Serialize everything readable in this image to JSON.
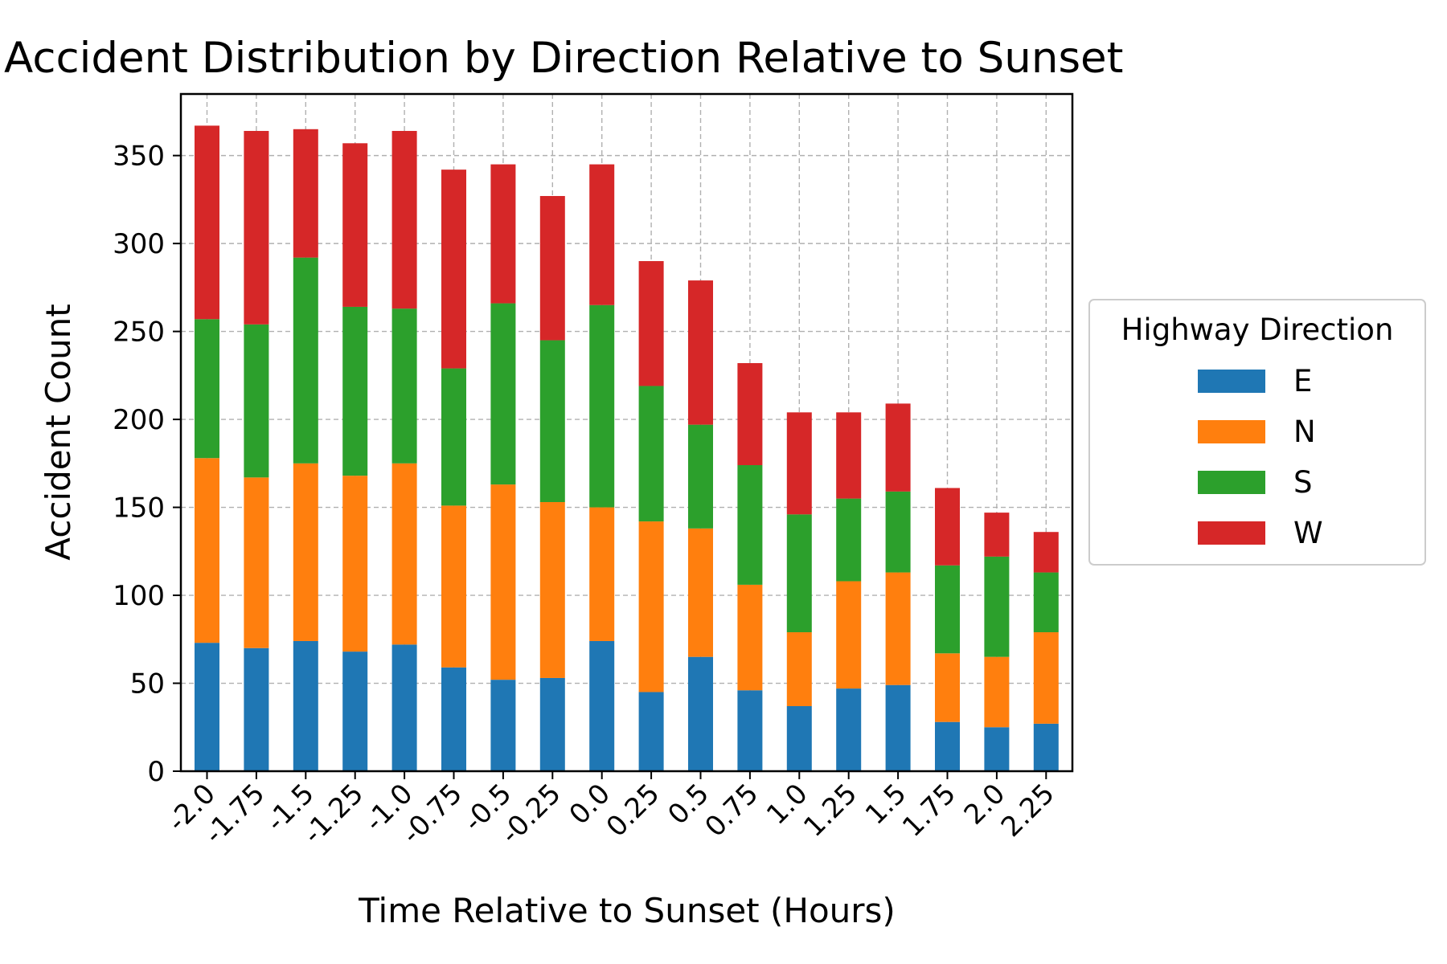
{
  "chart_data": {
    "type": "bar",
    "stacked": true,
    "title": "Accident Distribution by Direction Relative to Sunset",
    "xlabel": "Time Relative to Sunset (Hours)",
    "ylabel": "Accident Count",
    "categories": [
      "-2.0",
      "-1.75",
      "-1.5",
      "-1.25",
      "-1.0",
      "-0.75",
      "-0.5",
      "-0.25",
      "0.0",
      "0.25",
      "0.5",
      "0.75",
      "1.0",
      "1.25",
      "1.5",
      "1.75",
      "2.0",
      "2.25"
    ],
    "ylim": [
      0,
      385
    ],
    "yticks": [
      0,
      50,
      100,
      150,
      200,
      250,
      300,
      350
    ],
    "grid": true,
    "legend": {
      "title": "Highway Direction",
      "position": "center-right-outside"
    },
    "series": [
      {
        "name": "E",
        "color": "#1f77b4",
        "values": [
          73,
          70,
          74,
          68,
          72,
          59,
          52,
          53,
          74,
          45,
          65,
          46,
          37,
          47,
          49,
          28,
          25,
          27
        ]
      },
      {
        "name": "N",
        "color": "#ff7f0e",
        "values": [
          105,
          97,
          101,
          100,
          103,
          92,
          111,
          100,
          76,
          97,
          73,
          60,
          42,
          61,
          64,
          39,
          40,
          52
        ]
      },
      {
        "name": "S",
        "color": "#2ca02c",
        "values": [
          79,
          87,
          117,
          96,
          88,
          78,
          103,
          92,
          115,
          77,
          59,
          68,
          67,
          47,
          46,
          50,
          57,
          34
        ]
      },
      {
        "name": "W",
        "color": "#d62728",
        "values": [
          110,
          110,
          73,
          93,
          101,
          113,
          79,
          82,
          80,
          71,
          82,
          58,
          58,
          49,
          50,
          44,
          25,
          23
        ]
      }
    ]
  }
}
